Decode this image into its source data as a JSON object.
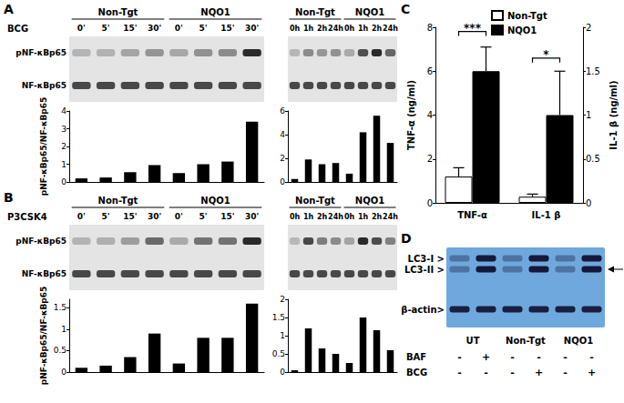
{
  "panel_labels": [
    "A",
    "B",
    "C",
    "D"
  ],
  "blots": [
    {
      "panel": "A",
      "treatment": "BCG",
      "groups": [
        {
          "label": "Non-Tgt",
          "lanes": [
            "0'",
            "5'",
            "15'",
            "30'"
          ]
        },
        {
          "label": "NQO1",
          "lanes": [
            "0'",
            "5'",
            "15'",
            "30'"
          ]
        }
      ],
      "rows": [
        "pNF-κBp65",
        "NF-κBp65"
      ]
    },
    {
      "panel": "A",
      "groups": [
        {
          "label": "Non-Tgt",
          "lanes": [
            "0h",
            "1h",
            "2h",
            "24h"
          ]
        },
        {
          "label": "NQO1",
          "lanes": [
            "0h",
            "1h",
            "2h",
            "24h"
          ]
        }
      ]
    },
    {
      "panel": "B",
      "treatment": "P3CSK4",
      "groups": [
        {
          "label": "Non-Tgt",
          "lanes": [
            "0'",
            "5'",
            "15'",
            "30'"
          ]
        },
        {
          "label": "NQO1",
          "lanes": [
            "0'",
            "5'",
            "15'",
            "30'"
          ]
        }
      ],
      "rows": [
        "pNF-κBp65",
        "NF-κBp65"
      ]
    },
    {
      "panel": "B",
      "groups": [
        {
          "label": "Non-Tgt",
          "lanes": [
            "0h",
            "1h",
            "2h",
            "24h"
          ]
        },
        {
          "label": "NQO1",
          "lanes": [
            "0h",
            "1h",
            "2h",
            "24h"
          ]
        }
      ]
    },
    {
      "panel": "D",
      "rows": [
        "LC3-I >",
        "LC3-II >",
        "β-actin>"
      ],
      "groups": [
        {
          "label": "UT"
        },
        {
          "label": "Non-Tgt"
        },
        {
          "label": "NQO1"
        }
      ],
      "conditions": [
        {
          "label": "BAF",
          "marks": [
            "-",
            "+",
            "-",
            "-",
            "-",
            "-"
          ]
        },
        {
          "label": "BCG",
          "marks": [
            "-",
            "-",
            "-",
            "+",
            "-",
            "+"
          ]
        }
      ]
    }
  ],
  "chart_data": [
    {
      "panel": "A",
      "type": "bar",
      "categories": [
        null,
        null,
        null,
        null,
        null,
        null,
        null,
        null
      ],
      "values": [
        0.2,
        0.25,
        0.55,
        0.95,
        0.5,
        1.0,
        1.15,
        3.4
      ],
      "color": "#000000",
      "ylim": [
        0,
        4
      ],
      "yticks": [
        0,
        1,
        2,
        3,
        4
      ],
      "y_label": "pNF-κBp65/NF-κBp65",
      "tick_labels": "y"
    },
    {
      "panel": "A",
      "type": "bar",
      "categories": [
        null,
        null,
        null,
        null,
        null,
        null,
        null,
        null
      ],
      "values": [
        0.25,
        1.9,
        1.5,
        1.6,
        0.7,
        4.2,
        5.6,
        3.3
      ],
      "color": "#000000",
      "ylim": [
        0,
        6
      ],
      "yticks": [
        0,
        2,
        4,
        6
      ],
      "tick_labels": "y"
    },
    {
      "panel": "B",
      "type": "bar",
      "categories": [
        null,
        null,
        null,
        null,
        null,
        null,
        null,
        null
      ],
      "values": [
        0.1,
        0.15,
        0.35,
        0.9,
        0.2,
        0.8,
        0.8,
        1.6
      ],
      "color": "#000000",
      "ylim": [
        0,
        1.7
      ],
      "yticks": [
        0,
        0.5,
        1,
        1.5
      ],
      "y_label": "pNF-κBp65/NF-κBp65",
      "tick_labels": "y"
    },
    {
      "panel": "B",
      "type": "bar",
      "categories": [
        null,
        null,
        null,
        null,
        null,
        null,
        null,
        null
      ],
      "values": [
        0.05,
        1.2,
        0.65,
        0.5,
        0.25,
        1.5,
        1.15,
        0.6
      ],
      "color": "#000000",
      "ylim": [
        0,
        2
      ],
      "yticks": [
        0,
        0.5,
        1,
        1.5,
        2
      ],
      "tick_labels": "y"
    },
    {
      "panel": "C",
      "type": "bar",
      "categories": [
        "TNF-α",
        "IL-1 β"
      ],
      "y_label": "TNF-α (ng/ml)",
      "y2_label": "IL-1 β (ng/ml)",
      "ylim": [
        0,
        8
      ],
      "yticks": [
        0,
        2,
        4,
        6,
        8
      ],
      "y2lim": [
        0,
        2
      ],
      "y2ticks": [
        0,
        0.5,
        1,
        1.5,
        2
      ],
      "legend": "top",
      "series": [
        {
          "name": "Non-Tgt",
          "color": "#ffffff",
          "values": [
            1.2,
            null
          ],
          "errors": [
            0.4,
            null
          ]
        },
        {
          "name": "NQO1",
          "color": "#000000",
          "values": [
            6.0,
            null
          ],
          "errors": [
            1.1,
            null
          ]
        },
        {
          "name": "Non-Tgt",
          "color": "#ffffff",
          "axis": "y2",
          "values": [
            null,
            0.07
          ],
          "errors": [
            null,
            0.03
          ]
        },
        {
          "name": "NQO1",
          "color": "#000000",
          "axis": "y2",
          "values": [
            null,
            1.0
          ],
          "errors": [
            null,
            0.5
          ]
        }
      ],
      "annotations": [
        {
          "text": "***",
          "category": "TNF-α"
        },
        {
          "text": "*",
          "category": "IL-1 β"
        }
      ]
    }
  ]
}
